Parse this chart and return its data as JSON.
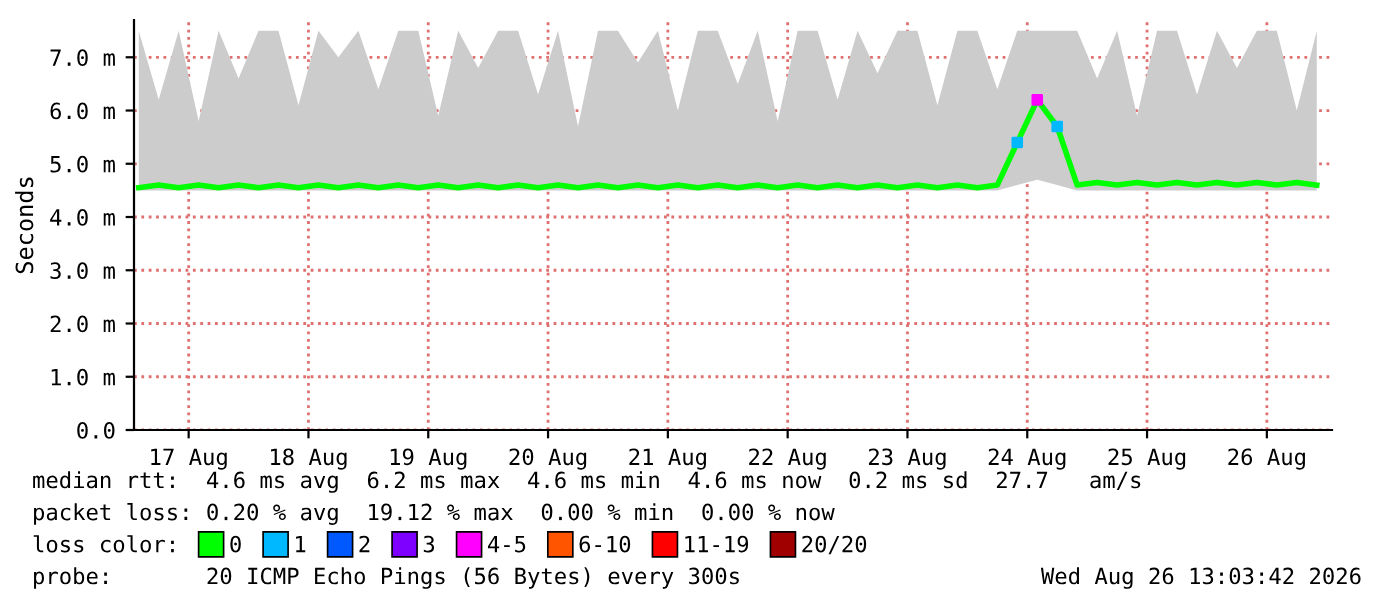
{
  "chart_data": {
    "type": "line",
    "ylabel": "Seconds",
    "legend_title": "loss color:",
    "legend": "bottom",
    "grid": true,
    "line_style": "solid",
    "x": [
      "2026-08-16T14:00",
      "2026-08-16T18:00",
      "2026-08-16T22:00",
      "2026-08-17T02:00",
      "2026-08-17T06:00",
      "2026-08-17T10:00",
      "2026-08-17T14:00",
      "2026-08-17T18:00",
      "2026-08-17T22:00",
      "2026-08-18T02:00",
      "2026-08-18T06:00",
      "2026-08-18T10:00",
      "2026-08-18T14:00",
      "2026-08-18T18:00",
      "2026-08-18T22:00",
      "2026-08-19T02:00",
      "2026-08-19T06:00",
      "2026-08-19T10:00",
      "2026-08-19T14:00",
      "2026-08-19T18:00",
      "2026-08-19T22:00",
      "2026-08-20T02:00",
      "2026-08-20T06:00",
      "2026-08-20T10:00",
      "2026-08-20T14:00",
      "2026-08-20T18:00",
      "2026-08-20T22:00",
      "2026-08-21T02:00",
      "2026-08-21T06:00",
      "2026-08-21T10:00",
      "2026-08-21T14:00",
      "2026-08-21T18:00",
      "2026-08-21T22:00",
      "2026-08-22T02:00",
      "2026-08-22T06:00",
      "2026-08-22T10:00",
      "2026-08-22T14:00",
      "2026-08-22T18:00",
      "2026-08-22T22:00",
      "2026-08-23T02:00",
      "2026-08-23T06:00",
      "2026-08-23T10:00",
      "2026-08-23T14:00",
      "2026-08-23T18:00",
      "2026-08-23T22:00",
      "2026-08-24T02:00",
      "2026-08-24T06:00",
      "2026-08-24T10:00",
      "2026-08-24T14:00",
      "2026-08-24T18:00",
      "2026-08-24T22:00",
      "2026-08-25T02:00",
      "2026-08-25T06:00",
      "2026-08-25T10:00",
      "2026-08-25T14:00",
      "2026-08-25T18:00",
      "2026-08-25T22:00",
      "2026-08-26T02:00",
      "2026-08-26T06:00",
      "2026-08-26T10:00"
    ],
    "series": [
      {
        "name": "0",
        "color": "#00ff00",
        "values": [
          4.55,
          4.6,
          4.55,
          4.6,
          4.55,
          4.6,
          4.55,
          4.6,
          4.55,
          4.6,
          4.55,
          4.6,
          4.55,
          4.6,
          4.55,
          4.6,
          4.55,
          4.6,
          4.55,
          4.6,
          4.55,
          4.6,
          4.55,
          4.6,
          4.55,
          4.6,
          4.55,
          4.6,
          4.55,
          4.6,
          4.55,
          4.6,
          4.55,
          4.6,
          4.55,
          4.6,
          4.55,
          4.6,
          4.55,
          4.6,
          4.55,
          4.6,
          4.55,
          4.6,
          5.4,
          6.2,
          5.7,
          4.6,
          4.65,
          4.6,
          4.65,
          4.6,
          4.65,
          4.6,
          4.65,
          4.6,
          4.65,
          4.6,
          4.65,
          4.6
        ],
        "lower": [
          4.5,
          4.5,
          4.5,
          4.5,
          4.5,
          4.5,
          4.5,
          4.5,
          4.5,
          4.5,
          4.5,
          4.5,
          4.5,
          4.5,
          4.5,
          4.5,
          4.5,
          4.5,
          4.5,
          4.5,
          4.5,
          4.5,
          4.5,
          4.5,
          4.5,
          4.5,
          4.5,
          4.5,
          4.5,
          4.5,
          4.5,
          4.5,
          4.5,
          4.5,
          4.5,
          4.5,
          4.5,
          4.5,
          4.5,
          4.5,
          4.5,
          4.5,
          4.5,
          4.5,
          4.6,
          4.7,
          4.6,
          4.5,
          4.5,
          4.5,
          4.5,
          4.5,
          4.5,
          4.5,
          4.5,
          4.5,
          4.5,
          4.5,
          4.5,
          4.5
        ],
        "upper": [
          7.5,
          6.2,
          7.5,
          5.8,
          7.5,
          6.6,
          7.5,
          7.5,
          6.1,
          7.5,
          7.0,
          7.5,
          6.4,
          7.5,
          7.5,
          5.9,
          7.5,
          6.8,
          7.5,
          7.5,
          6.3,
          7.5,
          5.7,
          7.5,
          7.5,
          6.9,
          7.5,
          6.0,
          7.5,
          7.5,
          6.5,
          7.5,
          5.8,
          7.5,
          7.5,
          6.2,
          7.5,
          6.7,
          7.5,
          7.5,
          6.1,
          7.5,
          7.5,
          6.4,
          7.5,
          7.5,
          7.5,
          7.5,
          6.6,
          7.5,
          5.9,
          7.5,
          7.5,
          6.3,
          7.5,
          6.8,
          7.5,
          7.5,
          6.0,
          7.5
        ]
      },
      {
        "name": "1",
        "color": "#00b8ff",
        "type": "scatter",
        "values": [
          null,
          null,
          null,
          null,
          null,
          null,
          null,
          null,
          null,
          null,
          null,
          null,
          null,
          null,
          null,
          null,
          null,
          null,
          null,
          null,
          null,
          null,
          null,
          null,
          null,
          null,
          null,
          null,
          null,
          null,
          null,
          null,
          null,
          null,
          null,
          null,
          null,
          null,
          null,
          null,
          null,
          null,
          null,
          null,
          5.4,
          null,
          5.7,
          null,
          null,
          null,
          null,
          null,
          null,
          null,
          null,
          null,
          null,
          null,
          null,
          null
        ]
      },
      {
        "name": "2",
        "color": "#0059ff",
        "type": "scatter",
        "values": [
          null,
          null,
          null,
          null,
          null,
          null,
          null,
          null,
          null,
          null,
          null,
          null,
          null,
          null,
          null,
          null,
          null,
          null,
          null,
          null,
          null,
          null,
          null,
          null,
          null,
          null,
          null,
          null,
          null,
          null,
          null,
          null,
          null,
          null,
          null,
          null,
          null,
          null,
          null,
          null,
          null,
          null,
          null,
          null,
          null,
          null,
          null,
          null,
          null,
          null,
          null,
          null,
          null,
          null,
          null,
          null,
          null,
          null,
          null,
          null
        ]
      },
      {
        "name": "3",
        "color": "#7e00ff",
        "type": "scatter",
        "values": [
          null,
          null,
          null,
          null,
          null,
          null,
          null,
          null,
          null,
          null,
          null,
          null,
          null,
          null,
          null,
          null,
          null,
          null,
          null,
          null,
          null,
          null,
          null,
          null,
          null,
          null,
          null,
          null,
          null,
          null,
          null,
          null,
          null,
          null,
          null,
          null,
          null,
          null,
          null,
          null,
          null,
          null,
          null,
          null,
          null,
          null,
          null,
          null,
          null,
          null,
          null,
          null,
          null,
          null,
          null,
          null,
          null,
          null,
          null,
          null
        ]
      },
      {
        "name": "4-5",
        "color": "#ff00ff",
        "type": "scatter",
        "values": [
          null,
          null,
          null,
          null,
          null,
          null,
          null,
          null,
          null,
          null,
          null,
          null,
          null,
          null,
          null,
          null,
          null,
          null,
          null,
          null,
          null,
          null,
          null,
          null,
          null,
          null,
          null,
          null,
          null,
          null,
          null,
          null,
          null,
          null,
          null,
          null,
          null,
          null,
          null,
          null,
          null,
          null,
          null,
          null,
          null,
          6.2,
          null,
          null,
          null,
          null,
          null,
          null,
          null,
          null,
          null,
          null,
          null,
          null,
          null,
          null
        ]
      },
      {
        "name": "6-10",
        "color": "#ff5500",
        "type": "scatter",
        "values": [
          null,
          null,
          null,
          null,
          null,
          null,
          null,
          null,
          null,
          null,
          null,
          null,
          null,
          null,
          null,
          null,
          null,
          null,
          null,
          null,
          null,
          null,
          null,
          null,
          null,
          null,
          null,
          null,
          null,
          null,
          null,
          null,
          null,
          null,
          null,
          null,
          null,
          null,
          null,
          null,
          null,
          null,
          null,
          null,
          null,
          null,
          null,
          null,
          null,
          null,
          null,
          null,
          null,
          null,
          null,
          null,
          null,
          null,
          null,
          null
        ]
      },
      {
        "name": "11-19",
        "color": "#ff0000",
        "type": "scatter",
        "values": [
          null,
          null,
          null,
          null,
          null,
          null,
          null,
          null,
          null,
          null,
          null,
          null,
          null,
          null,
          null,
          null,
          null,
          null,
          null,
          null,
          null,
          null,
          null,
          null,
          null,
          null,
          null,
          null,
          null,
          null,
          null,
          null,
          null,
          null,
          null,
          null,
          null,
          null,
          null,
          null,
          null,
          null,
          null,
          null,
          null,
          null,
          null,
          null,
          null,
          null,
          null,
          null,
          null,
          null,
          null,
          null,
          null,
          null,
          null,
          null
        ]
      },
      {
        "name": "20/20",
        "color": "#a10000",
        "type": "scatter",
        "values": [
          null,
          null,
          null,
          null,
          null,
          null,
          null,
          null,
          null,
          null,
          null,
          null,
          null,
          null,
          null,
          null,
          null,
          null,
          null,
          null,
          null,
          null,
          null,
          null,
          null,
          null,
          null,
          null,
          null,
          null,
          null,
          null,
          null,
          null,
          null,
          null,
          null,
          null,
          null,
          null,
          null,
          null,
          null,
          null,
          null,
          null,
          null,
          null,
          null,
          null,
          null,
          null,
          null,
          null,
          null,
          null,
          null,
          null,
          null,
          null
        ]
      }
    ],
    "xlim": [
      "2026-08-16T13:03",
      "2026-08-26T13:03"
    ],
    "xticks": [
      {
        "value": "2026-08-17",
        "label": "17 Aug"
      },
      {
        "value": "2026-08-18",
        "label": "18 Aug"
      },
      {
        "value": "2026-08-19",
        "label": "19 Aug"
      },
      {
        "value": "2026-08-20",
        "label": "20 Aug"
      },
      {
        "value": "2026-08-21",
        "label": "21 Aug"
      },
      {
        "value": "2026-08-22",
        "label": "22 Aug"
      },
      {
        "value": "2026-08-23",
        "label": "23 Aug"
      },
      {
        "value": "2026-08-24",
        "label": "24 Aug"
      },
      {
        "value": "2026-08-25",
        "label": "25 Aug"
      },
      {
        "value": "2026-08-26",
        "label": "26 Aug"
      }
    ],
    "ylim": [
      0,
      7.7
    ],
    "yticks": [
      {
        "value": 0,
        "label": "0.0"
      },
      {
        "value": 1,
        "label": "1.0 m"
      },
      {
        "value": 2,
        "label": "2.0 m"
      },
      {
        "value": 3,
        "label": "3.0 m"
      },
      {
        "value": 4,
        "label": "4.0 m"
      },
      {
        "value": 5,
        "label": "5.0 m"
      },
      {
        "value": 6,
        "label": "6.0 m"
      },
      {
        "value": 7,
        "label": "7.0 m"
      }
    ],
    "annotations": [
      "median rtt:  4.6 ms avg  6.2 ms max  4.6 ms min  4.6 ms now  0.2 ms sd  27.7   am/s",
      "packet loss: 0.20 % avg  19.12 % max  0.00 % min  0.00 % now",
      "probe:       20 ICMP Echo Pings (56 Bytes) every 300s",
      "Wed Aug 26 13:03:42 2026"
    ]
  }
}
